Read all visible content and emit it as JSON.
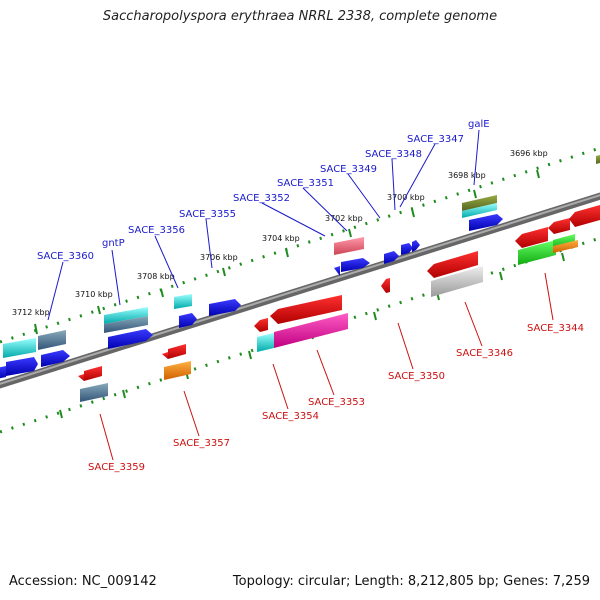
{
  "title": "Saccharopolyspora erythraea NRRL 2338, complete genome",
  "footer": {
    "accession": "Accession: NC_009142",
    "summary": "Topology: circular; Length: 8,212,805 bp; Genes: 7,259"
  },
  "kbp_labels": [
    "3712 kbp",
    "3710 kbp",
    "3708 kbp",
    "3706 kbp",
    "3704 kbp",
    "3702 kbp",
    "3700 kbp",
    "3698 kbp",
    "3696 kbp"
  ],
  "top_gene_labels": [
    "SACE_3360",
    "gntP",
    "SACE_3356",
    "SACE_3355",
    "SACE_3352",
    "SACE_3351",
    "SACE_3349",
    "SACE_3348",
    "SACE_3347",
    "galE"
  ],
  "bottom_gene_labels": [
    "SACE_3359",
    "SACE_3357",
    "SACE_3354",
    "SACE_3353",
    "SACE_3350",
    "SACE_3346",
    "SACE_3344"
  ],
  "colors": {
    "backbone": "#808080",
    "tick": "#1e8c1e",
    "top_label": "#1a1acc",
    "bottom_label": "#cc1111"
  }
}
